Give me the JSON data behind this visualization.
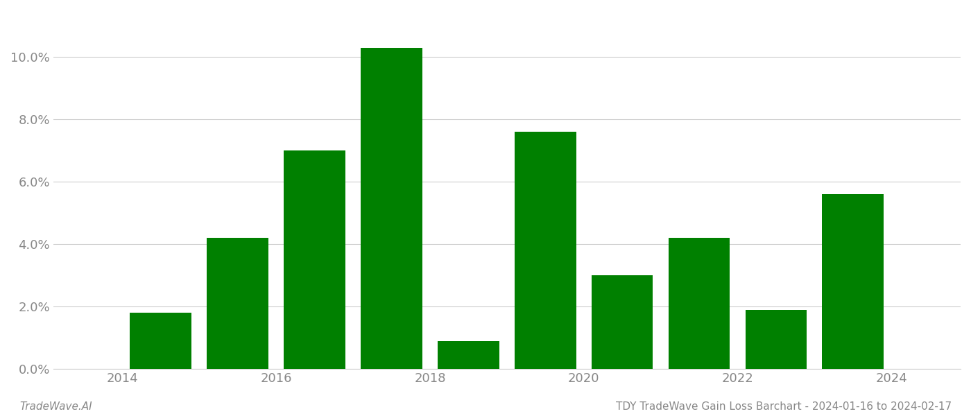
{
  "years": [
    2014,
    2015,
    2016,
    2017,
    2018,
    2019,
    2020,
    2021,
    2022,
    2023
  ],
  "values": [
    0.018,
    0.042,
    0.07,
    0.103,
    0.009,
    0.076,
    0.03,
    0.042,
    0.019,
    0.056
  ],
  "bar_color": "#008000",
  "background_color": "#ffffff",
  "grid_color": "#cccccc",
  "title_text": "TDY TradeWave Gain Loss Barchart - 2024-01-16 to 2024-02-17",
  "watermark_text": "TradeWave.AI",
  "title_fontsize": 11,
  "watermark_fontsize": 11,
  "tick_label_color": "#888888",
  "ylim": [
    0,
    0.115
  ],
  "yticks": [
    0.0,
    0.02,
    0.04,
    0.06,
    0.08,
    0.1
  ],
  "xtick_labels": [
    "2014",
    "2016",
    "2018",
    "2020",
    "2022",
    "2024"
  ],
  "xtick_positions": [
    2013.5,
    2015.5,
    2017.5,
    2019.5,
    2021.5,
    2023.5
  ],
  "xlim": [
    2012.6,
    2024.4
  ],
  "bar_width": 0.8
}
